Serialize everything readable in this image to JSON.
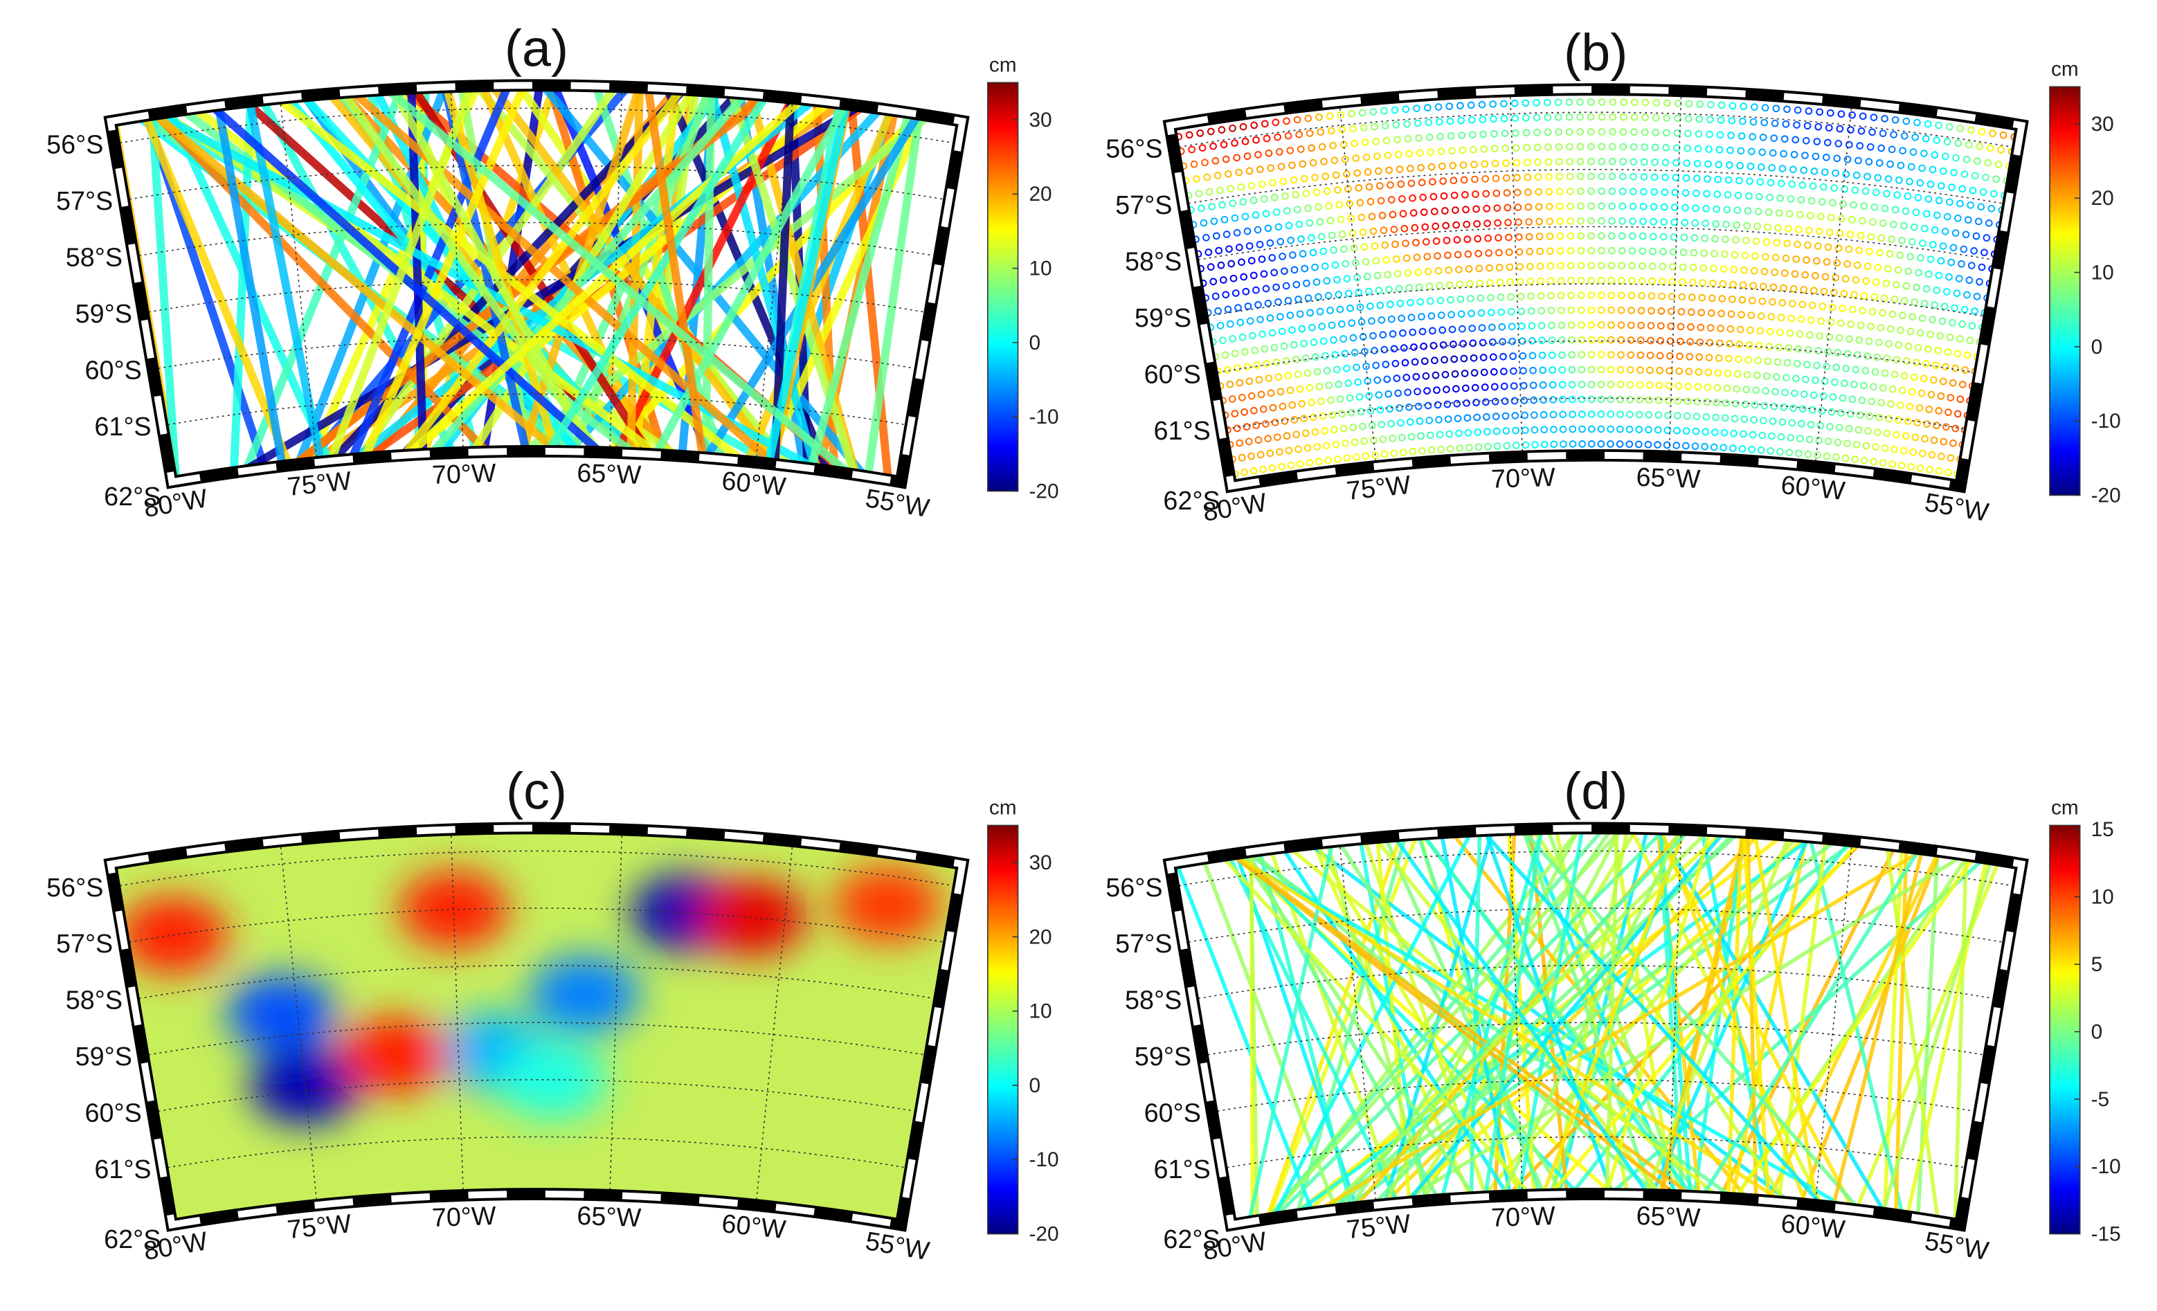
{
  "panels": [
    {
      "label": "(a)",
      "colorbar": {
        "unit": "cm",
        "lim": [
          -20,
          35
        ],
        "ticks": [
          30,
          20,
          10,
          0,
          -10,
          -20
        ]
      },
      "lat_lim": [
        -62,
        -55.6
      ],
      "lon_lim": [
        -80,
        -55
      ],
      "lat_ticks": [
        {
          "value": -56,
          "label": "56°S"
        },
        {
          "value": -57,
          "label": "57°S"
        },
        {
          "value": -58,
          "label": "58°S"
        },
        {
          "value": -59,
          "label": "59°S"
        },
        {
          "value": -60,
          "label": "60°S"
        },
        {
          "value": -61,
          "label": "61°S"
        },
        {
          "value": -62,
          "label": "62°S"
        }
      ],
      "lon_ticks": [
        {
          "value": -80,
          "label": "80°W"
        },
        {
          "value": -75,
          "label": "75°W"
        },
        {
          "value": -70,
          "label": "70°W"
        },
        {
          "value": -65,
          "label": "65°W"
        },
        {
          "value": -60,
          "label": "60°W"
        },
        {
          "value": -55,
          "label": "55°W"
        }
      ]
    },
    {
      "label": "(b)",
      "colorbar": {
        "unit": "cm",
        "lim": [
          -20,
          35
        ],
        "ticks": [
          30,
          20,
          10,
          0,
          -10,
          -20
        ]
      },
      "lat_lim": [
        -62,
        -55.6
      ],
      "lon_lim": [
        -80,
        -55
      ],
      "lat_ticks": [
        {
          "value": -56,
          "label": "56°S"
        },
        {
          "value": -57,
          "label": "57°S"
        },
        {
          "value": -58,
          "label": "58°S"
        },
        {
          "value": -59,
          "label": "59°S"
        },
        {
          "value": -60,
          "label": "60°S"
        },
        {
          "value": -61,
          "label": "61°S"
        },
        {
          "value": -62,
          "label": "62°S"
        }
      ],
      "lon_ticks": [
        {
          "value": -80,
          "label": "80°W"
        },
        {
          "value": -75,
          "label": "75°W"
        },
        {
          "value": -70,
          "label": "70°W"
        },
        {
          "value": -65,
          "label": "65°W"
        },
        {
          "value": -60,
          "label": "60°W"
        },
        {
          "value": -55,
          "label": "55°W"
        }
      ]
    },
    {
      "label": "(c)",
      "colorbar": {
        "unit": "cm",
        "lim": [
          -20,
          35
        ],
        "ticks": [
          30,
          20,
          10,
          0,
          -10,
          -20
        ]
      },
      "lat_lim": [
        -62,
        -55.6
      ],
      "lon_lim": [
        -80,
        -55
      ],
      "lat_ticks": [
        {
          "value": -56,
          "label": "56°S"
        },
        {
          "value": -57,
          "label": "57°S"
        },
        {
          "value": -58,
          "label": "58°S"
        },
        {
          "value": -59,
          "label": "59°S"
        },
        {
          "value": -60,
          "label": "60°S"
        },
        {
          "value": -61,
          "label": "61°S"
        },
        {
          "value": -62,
          "label": "62°S"
        }
      ],
      "lon_ticks": [
        {
          "value": -80,
          "label": "80°W"
        },
        {
          "value": -75,
          "label": "75°W"
        },
        {
          "value": -70,
          "label": "70°W"
        },
        {
          "value": -65,
          "label": "65°W"
        },
        {
          "value": -60,
          "label": "60°W"
        },
        {
          "value": -55,
          "label": "55°W"
        }
      ]
    },
    {
      "label": "(d)",
      "colorbar": {
        "unit": "cm",
        "lim": [
          -15,
          15.3
        ],
        "ticks": [
          15,
          10,
          5,
          0,
          -5,
          -10,
          -15
        ]
      },
      "lat_lim": [
        -62,
        -55.6
      ],
      "lon_lim": [
        -80,
        -55
      ],
      "lat_ticks": [
        {
          "value": -56,
          "label": "56°S"
        },
        {
          "value": -57,
          "label": "57°S"
        },
        {
          "value": -58,
          "label": "58°S"
        },
        {
          "value": -59,
          "label": "59°S"
        },
        {
          "value": -60,
          "label": "60°S"
        },
        {
          "value": -61,
          "label": "61°S"
        },
        {
          "value": -62,
          "label": "62°S"
        }
      ],
      "lon_ticks": [
        {
          "value": -80,
          "label": "80°W"
        },
        {
          "value": -75,
          "label": "75°W"
        },
        {
          "value": -70,
          "label": "70°W"
        },
        {
          "value": -65,
          "label": "65°W"
        },
        {
          "value": -60,
          "label": "60°W"
        },
        {
          "value": -55,
          "label": "55°W"
        }
      ]
    }
  ]
}
